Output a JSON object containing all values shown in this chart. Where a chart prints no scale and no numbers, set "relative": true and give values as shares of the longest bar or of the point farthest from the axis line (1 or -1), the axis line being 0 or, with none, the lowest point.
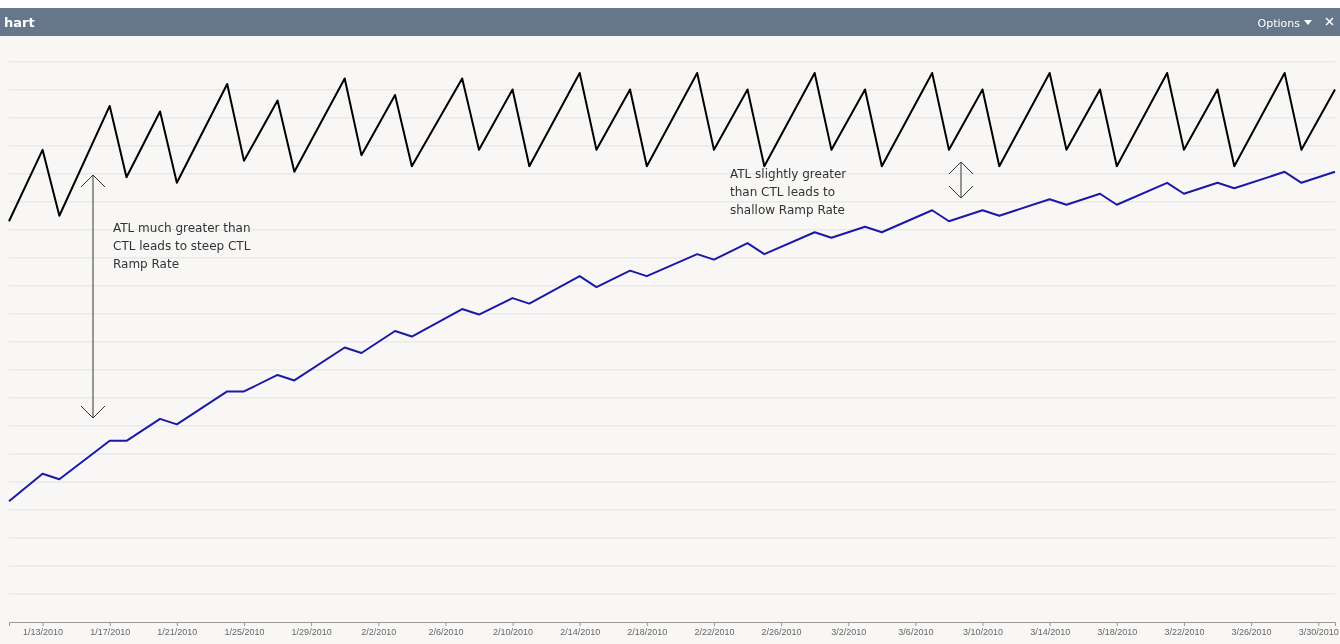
{
  "chart_data": {
    "type": "line",
    "title": "hart",
    "relative": true,
    "grid": true,
    "line_style": "solid",
    "x": [
      "2010-01-11",
      "2010-01-13",
      "2010-01-14",
      "2010-01-17",
      "2010-01-18",
      "2010-01-20",
      "2010-01-21",
      "2010-01-24",
      "2010-01-25",
      "2010-01-27",
      "2010-01-28",
      "2010-01-31",
      "2010-02-01",
      "2010-02-03",
      "2010-02-04",
      "2010-02-07",
      "2010-02-08",
      "2010-02-10",
      "2010-02-11",
      "2010-02-14",
      "2010-02-15",
      "2010-02-17",
      "2010-02-18",
      "2010-02-21",
      "2010-02-22",
      "2010-02-24",
      "2010-02-25",
      "2010-02-28",
      "2010-03-01",
      "2010-03-03",
      "2010-03-04",
      "2010-03-07",
      "2010-03-08",
      "2010-03-10",
      "2010-03-11",
      "2010-03-14",
      "2010-03-15",
      "2010-03-17",
      "2010-03-18",
      "2010-03-21",
      "2010-03-22",
      "2010-03-24",
      "2010-03-25",
      "2010-03-28",
      "2010-03-29",
      "2010-03-31"
    ],
    "xlim": [
      "2010-01-11",
      "2010-03-31"
    ],
    "xticks": [
      {
        "value": "2010-01-13",
        "label": "1/13/2010"
      },
      {
        "value": "2010-01-17",
        "label": "1/17/2010"
      },
      {
        "value": "2010-01-21",
        "label": "1/21/2010"
      },
      {
        "value": "2010-01-25",
        "label": "1/25/2010"
      },
      {
        "value": "2010-01-29",
        "label": "1/29/2010"
      },
      {
        "value": "2010-02-02",
        "label": "2/2/2010"
      },
      {
        "value": "2010-02-06",
        "label": "2/6/2010"
      },
      {
        "value": "2010-02-10",
        "label": "2/10/2010"
      },
      {
        "value": "2010-02-14",
        "label": "2/14/2010"
      },
      {
        "value": "2010-02-18",
        "label": "2/18/2010"
      },
      {
        "value": "2010-02-22",
        "label": "2/22/2010"
      },
      {
        "value": "2010-02-26",
        "label": "2/26/2010"
      },
      {
        "value": "2010-03-02",
        "label": "3/2/2010"
      },
      {
        "value": "2010-03-06",
        "label": "3/6/2010"
      },
      {
        "value": "2010-03-10",
        "label": "3/10/2010"
      },
      {
        "value": "2010-03-14",
        "label": "3/14/2010"
      },
      {
        "value": "2010-03-18",
        "label": "3/18/2010"
      },
      {
        "value": "2010-03-22",
        "label": "3/22/2010"
      },
      {
        "value": "2010-03-26",
        "label": "3/26/2010"
      },
      {
        "value": "2010-03-30",
        "label": "3/30/2010"
      }
    ],
    "series": [
      {
        "color": "#000000",
        "values": [
          0.73,
          0.86,
          0.74,
          0.94,
          0.81,
          0.93,
          0.8,
          0.98,
          0.84,
          0.95,
          0.82,
          0.99,
          0.85,
          0.96,
          0.83,
          0.99,
          0.86,
          0.97,
          0.83,
          1,
          0.86,
          0.97,
          0.83,
          1,
          0.86,
          0.97,
          0.83,
          1,
          0.86,
          0.97,
          0.83,
          1,
          0.86,
          0.97,
          0.83,
          1,
          0.86,
          0.97,
          0.83,
          1,
          0.86,
          0.97,
          0.83,
          1,
          0.86,
          0.97
        ]
      },
      {
        "color": "#1a1aa6",
        "values": [
          0.22,
          0.27,
          0.26,
          0.33,
          0.33,
          0.37,
          0.36,
          0.42,
          0.42,
          0.45,
          0.44,
          0.5,
          0.49,
          0.53,
          0.52,
          0.57,
          0.56,
          0.59,
          0.58,
          0.63,
          0.61,
          0.64,
          0.63,
          0.67,
          0.66,
          0.69,
          0.67,
          0.71,
          0.7,
          0.72,
          0.71,
          0.75,
          0.73,
          0.75,
          0.74,
          0.77,
          0.76,
          0.78,
          0.76,
          0.8,
          0.78,
          0.8,
          0.79,
          0.82,
          0.8,
          0.82
        ]
      }
    ],
    "annotations": [
      "Options",
      "ATL much greater than\nCTL leads to steep CTL\nRamp Rate",
      "ATL slightly greater\nthan CTL leads to\nshallow Ramp Rate"
    ]
  }
}
